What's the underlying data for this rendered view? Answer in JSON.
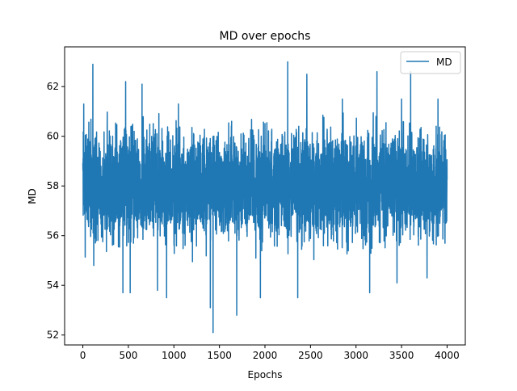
{
  "chart_data": {
    "type": "line",
    "title": "MD over epochs",
    "xlabel": "Epochs",
    "ylabel": "MD",
    "xlim": [
      -200,
      4200
    ],
    "ylim": [
      51.6,
      63.6
    ],
    "x_ticks": [
      0,
      500,
      1000,
      1500,
      2000,
      2500,
      3000,
      3500,
      4000
    ],
    "x_tick_labels": [
      "0",
      "500",
      "1000",
      "1500",
      "2000",
      "2500",
      "3000",
      "3500",
      "4000"
    ],
    "y_ticks": [
      52,
      54,
      56,
      58,
      60,
      62
    ],
    "y_tick_labels": [
      "52",
      "54",
      "56",
      "58",
      "60",
      "62"
    ],
    "grid": false,
    "legend": {
      "position": "top-right",
      "entries": [
        "MD"
      ]
    },
    "series": [
      {
        "name": "MD",
        "color": "#1f77b4",
        "x_start": 0,
        "x_end": 4000,
        "x_step": 1,
        "typical_band": [
          55.5,
          60.5
        ],
        "spikes": [
          {
            "x": 10,
            "y": 61.3
          },
          {
            "x": 110,
            "y": 62.9
          },
          {
            "x": 120,
            "y": 54.8
          },
          {
            "x": 470,
            "y": 62.2
          },
          {
            "x": 440,
            "y": 53.7
          },
          {
            "x": 520,
            "y": 53.7
          },
          {
            "x": 650,
            "y": 62.1
          },
          {
            "x": 820,
            "y": 53.8
          },
          {
            "x": 920,
            "y": 53.5
          },
          {
            "x": 1050,
            "y": 61.3
          },
          {
            "x": 1400,
            "y": 53.1
          },
          {
            "x": 1430,
            "y": 52.1
          },
          {
            "x": 1690,
            "y": 52.8
          },
          {
            "x": 1950,
            "y": 53.5
          },
          {
            "x": 2250,
            "y": 63.0
          },
          {
            "x": 2360,
            "y": 53.5
          },
          {
            "x": 2460,
            "y": 62.5
          },
          {
            "x": 2850,
            "y": 61.5
          },
          {
            "x": 3150,
            "y": 53.7
          },
          {
            "x": 3230,
            "y": 62.6
          },
          {
            "x": 3450,
            "y": 54.1
          },
          {
            "x": 3500,
            "y": 61.5
          },
          {
            "x": 3600,
            "y": 62.6
          },
          {
            "x": 3780,
            "y": 54.3
          },
          {
            "x": 3900,
            "y": 61.5
          }
        ]
      }
    ]
  }
}
